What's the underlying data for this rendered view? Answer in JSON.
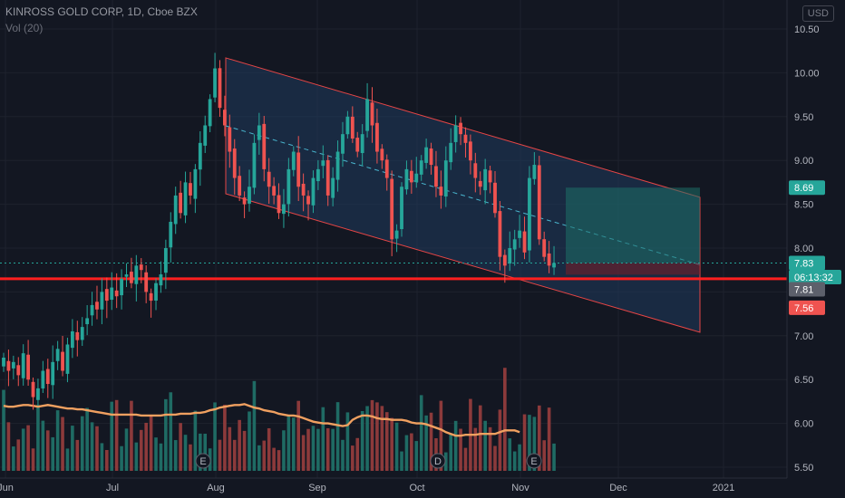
{
  "header": {
    "title": "KINROSS GOLD CORP, 1D, Cboe BZX",
    "volume_label": "Vol (20)",
    "currency": "USD"
  },
  "colors": {
    "background": "#131722",
    "up": "#26a69a",
    "down": "#ef5350",
    "channel_fill": "#1f3a5c",
    "channel_line": "#e64545",
    "mid_line": "#49b6cf",
    "support": "#ff1f1f",
    "vol_ma": "#f0a060",
    "target_zone": "#1d6f68",
    "stop_zone": "#7a1d28"
  },
  "chart_data": {
    "type": "candlestick",
    "title": "KINROSS GOLD CORP, 1D, Cboe BZX",
    "ylim": [
      5.45,
      10.55
    ],
    "y_ticks": [
      "10.50",
      "10.00",
      "9.50",
      "9.00",
      "8.50",
      "8.00",
      "7.50",
      "7.00",
      "6.50",
      "6.00",
      "5.50"
    ],
    "x_ticks": [
      "Jun",
      "Jul",
      "Aug",
      "Sep",
      "Oct",
      "Nov",
      "Dec",
      "2021"
    ],
    "price_tags": [
      {
        "label": "8.69",
        "value": 8.69,
        "color": "#26a69a"
      },
      {
        "label": "7.83",
        "value": 7.83,
        "color": "#26a69a"
      },
      {
        "label": "06:13:32",
        "value": 7.67,
        "color": "#26a69a"
      },
      {
        "label": "7.81",
        "value": 7.53,
        "color": "#5d606b"
      },
      {
        "label": "7.56",
        "value": 7.32,
        "color": "#ef5350"
      }
    ],
    "earnings_markers": [
      "E",
      "D",
      "E"
    ],
    "last_price": 7.83,
    "support_level": 7.65,
    "target_level": 8.69,
    "entry_level": 7.83,
    "stop_level": 7.56,
    "channel": {
      "start_upper": 10.17,
      "start_lower": 8.62,
      "end_upper": 8.58,
      "end_lower": 7.04
    },
    "ohlc_closes": [
      6.75,
      6.6,
      6.7,
      6.55,
      6.8,
      6.5,
      6.3,
      6.4,
      6.6,
      6.45,
      6.7,
      6.85,
      6.6,
      6.9,
      7.05,
      6.95,
      7.1,
      7.2,
      7.35,
      7.3,
      7.5,
      7.4,
      7.55,
      7.45,
      7.65,
      7.7,
      7.6,
      7.8,
      7.75,
      7.5,
      7.4,
      7.6,
      7.7,
      8.0,
      8.3,
      8.6,
      8.4,
      8.75,
      8.6,
      8.9,
      9.2,
      9.4,
      9.7,
      10.05,
      9.6,
      9.4,
      9.1,
      8.8,
      8.6,
      8.5,
      8.7,
      9.2,
      9.4,
      8.9,
      8.7,
      8.6,
      8.4,
      8.5,
      8.9,
      9.1,
      8.7,
      8.6,
      8.5,
      8.8,
      8.9,
      9.0,
      8.6,
      8.8,
      9.1,
      9.3,
      9.5,
      9.25,
      9.1,
      9.3,
      9.7,
      9.4,
      9.1,
      9.0,
      8.8,
      8.1,
      8.2,
      8.7,
      8.9,
      8.75,
      8.85,
      9.0,
      9.15,
      8.95,
      8.7,
      8.6,
      9.0,
      9.2,
      9.4,
      9.3,
      9.2,
      9.0,
      8.8,
      8.7,
      8.9,
      8.75,
      8.4,
      7.9,
      7.8,
      8.0,
      8.1,
      8.2,
      7.95,
      8.8,
      8.95,
      8.1,
      7.9,
      7.8,
      7.83
    ],
    "volume_ma": [
      6.2,
      6.19,
      6.19,
      6.2,
      6.21,
      6.21,
      6.2,
      6.19,
      6.2,
      6.21,
      6.2,
      6.19,
      6.18,
      6.17,
      6.17,
      6.16,
      6.16,
      6.15,
      6.14,
      6.13,
      6.12,
      6.11,
      6.1,
      6.1,
      6.1,
      6.1,
      6.1,
      6.1,
      6.09,
      6.09,
      6.09,
      6.09,
      6.09,
      6.1,
      6.1,
      6.1,
      6.11,
      6.11,
      6.11,
      6.12,
      6.12,
      6.13,
      6.15,
      6.16,
      6.18,
      6.19,
      6.2,
      6.21,
      6.21,
      6.22,
      6.2,
      6.18,
      6.17,
      6.15,
      6.14,
      6.13,
      6.11,
      6.1,
      6.09,
      6.09,
      6.08,
      6.06,
      6.04,
      6.02,
      6.01,
      6.0,
      6.0,
      5.99,
      5.98,
      5.97,
      5.98,
      6.04,
      6.07,
      6.09,
      6.09,
      6.08,
      6.06,
      6.05,
      6.05,
      6.04,
      6.04,
      6.04,
      6.03,
      6.01,
      6.0,
      6.0,
      5.99,
      5.97,
      5.95,
      5.93,
      5.9,
      5.88,
      5.86,
      5.86,
      5.87,
      5.87,
      5.87,
      5.88,
      5.88,
      5.88,
      5.88,
      5.9,
      5.92,
      5.92,
      5.92,
      5.9
    ]
  }
}
